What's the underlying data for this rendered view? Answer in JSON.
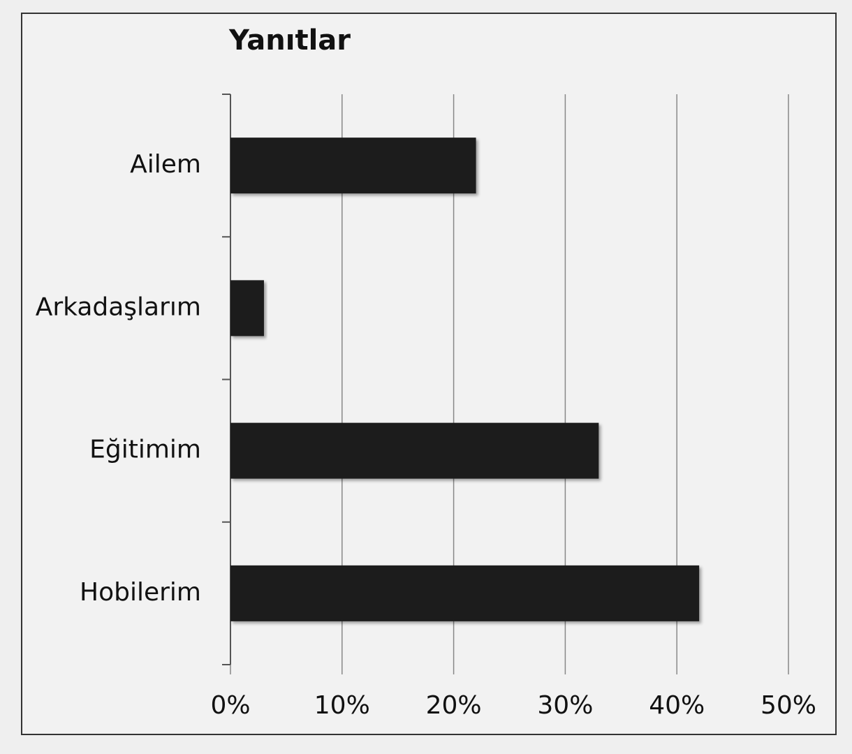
{
  "chart_data": {
    "type": "bar",
    "orientation": "horizontal",
    "title": "Yanıtlar",
    "categories": [
      "Ailem",
      "Arkadaşlarım",
      "Eğitimim",
      "Hobilerim"
    ],
    "values": [
      22,
      3,
      33,
      42
    ],
    "color": "#1c1c1c",
    "xlim": [
      0,
      50
    ],
    "xticks": [
      {
        "value": 0,
        "label": "0%"
      },
      {
        "value": 10,
        "label": "10%"
      },
      {
        "value": 20,
        "label": "20%"
      },
      {
        "value": 30,
        "label": "30%"
      },
      {
        "value": 40,
        "label": "40%"
      },
      {
        "value": 50,
        "label": "50%"
      }
    ],
    "grid": true
  }
}
